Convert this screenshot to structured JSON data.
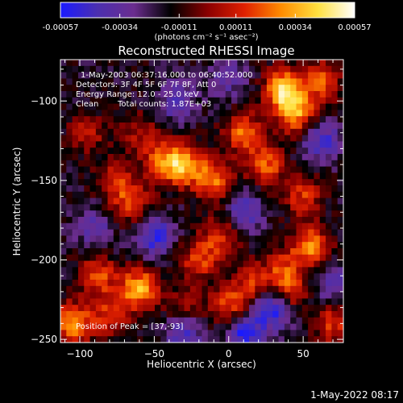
{
  "figure_title": "Reconstructed RHESSI Image",
  "timestamp": "1-May-2022 08:17",
  "colorbar": {
    "tick_labels": [
      "-0.00057",
      "-0.00034",
      "-0.00011",
      "0.00011",
      "0.00034",
      "0.00057"
    ],
    "tick_values": [
      -0.00057,
      -0.00034,
      -0.00011,
      0.00011,
      0.00034,
      0.00057
    ],
    "range": [
      -0.00057,
      0.00057
    ],
    "unit_label": "(photons cm⁻² s⁻¹ asec⁻²)",
    "colors": [
      "#1a1aff",
      "#4b2fb0",
      "#6b2d8f",
      "#000000",
      "#8a0000",
      "#e02000",
      "#ff8c00",
      "#ffe040",
      "#ffffff"
    ]
  },
  "annotations": {
    "time_range": "1-May-2003 06:37:16.000 to 06:40:52.000",
    "detectors": "Detectors: 3F 4F 5F 6F 7F 8F, Att 0",
    "energy": "Energy Range: 12.0 - 25.0 keV",
    "method": "Clean",
    "total_counts": "Total counts: 1.87E+03",
    "peak": "Position of Peak = [37,-93]"
  },
  "chart_data": {
    "type": "heatmap",
    "title": "Reconstructed RHESSI Image",
    "xlabel": "Heliocentric X (arcsec)",
    "ylabel": "Heliocentric Y (arcsec)",
    "xlim": [
      -113,
      77
    ],
    "ylim": [
      -252,
      -74
    ],
    "x_ticks": [
      -100,
      -50,
      0,
      50
    ],
    "y_ticks": [
      -100,
      -150,
      -200,
      -250
    ],
    "x_tick_labels": [
      "−100",
      "−50",
      "0",
      "50"
    ],
    "y_tick_labels": [
      "−100",
      "−150",
      "−200",
      "−250"
    ],
    "value_range": [
      -0.00057,
      0.00057
    ],
    "peak": [
      37,
      -93
    ],
    "grid_resolution": [
      48,
      45
    ],
    "sources": [
      {
        "x": 37,
        "y": -93,
        "value": 0.00057
      },
      {
        "x": 45,
        "y": -108,
        "value": 0.00045
      },
      {
        "x": 62,
        "y": -88,
        "value": 0.00036
      },
      {
        "x": 10,
        "y": -120,
        "value": 0.0004
      },
      {
        "x": -30,
        "y": -140,
        "value": 0.0005
      },
      {
        "x": -10,
        "y": -150,
        "value": 0.00042
      },
      {
        "x": 25,
        "y": -140,
        "value": 0.00038
      },
      {
        "x": -45,
        "y": -138,
        "value": 0.00035
      },
      {
        "x": -65,
        "y": -165,
        "value": 0.0003
      },
      {
        "x": -75,
        "y": -150,
        "value": 0.00028
      },
      {
        "x": 50,
        "y": -160,
        "value": 0.0003
      },
      {
        "x": 55,
        "y": -192,
        "value": 0.00045
      },
      {
        "x": 40,
        "y": -220,
        "value": 0.00035
      },
      {
        "x": 35,
        "y": -205,
        "value": 0.00025
      },
      {
        "x": -20,
        "y": -200,
        "value": 0.00032
      },
      {
        "x": -5,
        "y": -185,
        "value": 0.0003
      },
      {
        "x": 0,
        "y": -230,
        "value": 0.00035
      },
      {
        "x": 15,
        "y": -215,
        "value": 0.00028
      },
      {
        "x": -60,
        "y": -218,
        "value": 0.00052
      },
      {
        "x": -88,
        "y": -210,
        "value": 0.00035
      },
      {
        "x": -105,
        "y": -240,
        "value": 0.00048
      },
      {
        "x": -80,
        "y": -235,
        "value": 0.0003
      },
      {
        "x": -95,
        "y": -120,
        "value": 0.00022
      },
      {
        "x": -60,
        "y": -120,
        "value": 0.0002
      },
      {
        "x": 70,
        "y": -240,
        "value": 0.0003
      },
      {
        "x": -30,
        "y": -230,
        "value": 0.00022
      }
    ],
    "negatives": [
      {
        "x": 30,
        "y": -230,
        "value": -0.00045
      },
      {
        "x": 10,
        "y": -245,
        "value": -0.0004
      },
      {
        "x": -30,
        "y": -245,
        "value": -0.0003
      },
      {
        "x": -50,
        "y": -185,
        "value": -0.00035
      },
      {
        "x": 62,
        "y": -125,
        "value": -0.0003
      },
      {
        "x": -90,
        "y": -180,
        "value": -0.0002
      },
      {
        "x": 10,
        "y": -170,
        "value": -0.0003
      },
      {
        "x": -35,
        "y": -100,
        "value": -0.00025
      },
      {
        "x": 0,
        "y": -85,
        "value": -0.0002
      },
      {
        "x": 70,
        "y": -215,
        "value": -0.00025
      }
    ]
  }
}
